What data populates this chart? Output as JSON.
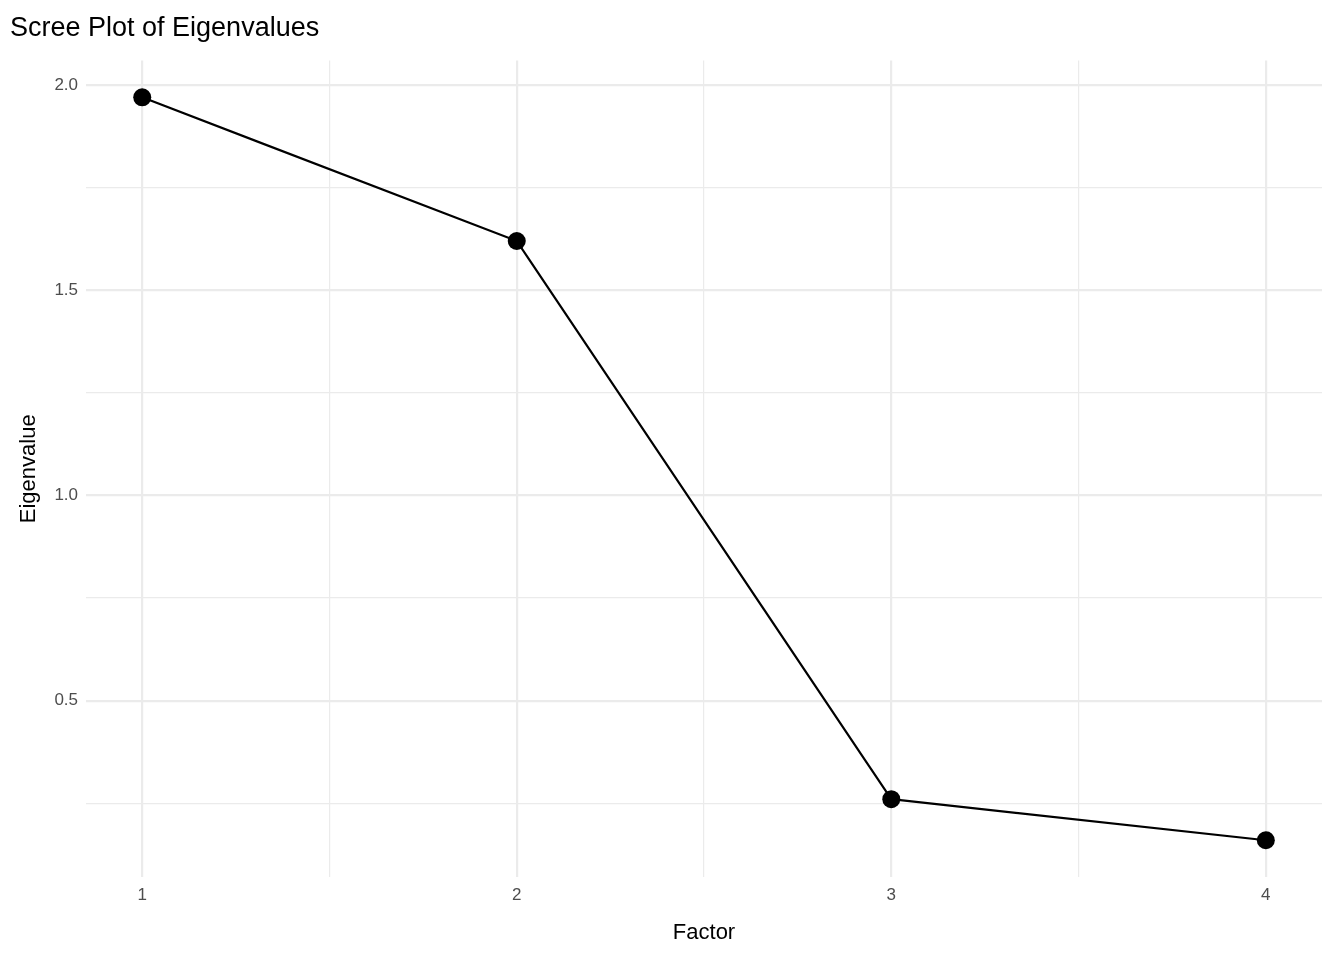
{
  "chart_data": {
    "type": "line",
    "title": "Scree Plot of Eigenvalues",
    "xlabel": "Factor",
    "ylabel": "Eigenvalue",
    "x": [
      1,
      2,
      3,
      4
    ],
    "values": [
      1.97,
      1.62,
      0.26,
      0.16
    ],
    "color": "#000000",
    "marker": "circle",
    "line_style": "solid",
    "grid": true,
    "xlim": [
      0.85,
      4.15
    ],
    "xticks": [
      1,
      {
        "value": 1.5,
        "label": null
      },
      2,
      {
        "value": 2.5,
        "label": null
      },
      3,
      {
        "value": 3.5,
        "label": null
      },
      4
    ],
    "ylim": [
      0.07,
      2.06
    ],
    "yticks": [
      {
        "value": 0.25,
        "label": null
      },
      0.5,
      {
        "value": 0.75,
        "label": null
      },
      {
        "value": 1,
        "label": "1.0"
      },
      {
        "value": 1.25,
        "label": null
      },
      1.5,
      {
        "value": 1.75,
        "label": null
      },
      {
        "value": 2,
        "label": "2.0"
      }
    ]
  }
}
